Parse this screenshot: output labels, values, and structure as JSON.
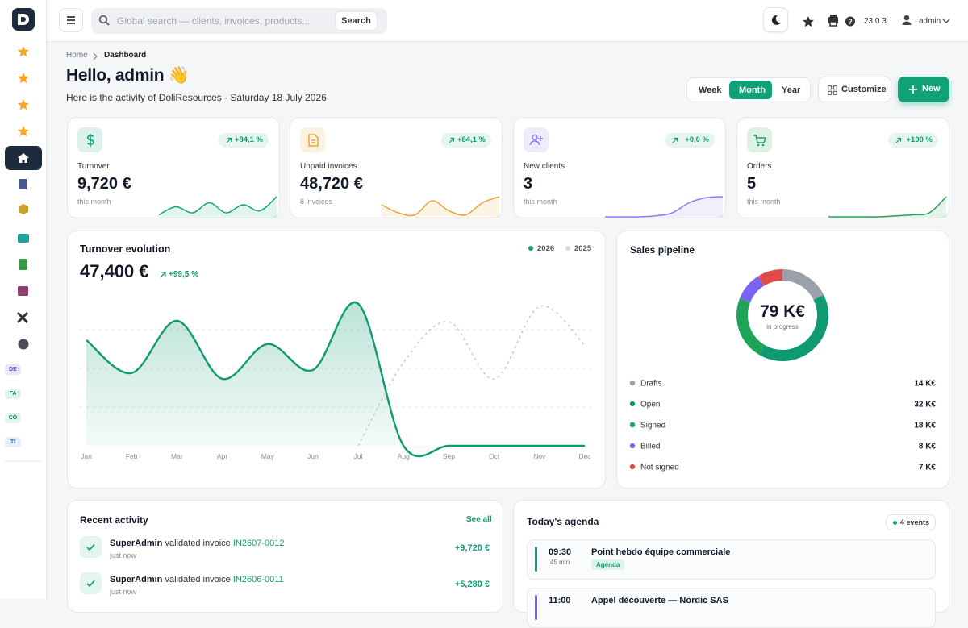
{
  "topbar": {
    "search_placeholder": "Global search — clients, invoices, products...",
    "search_button": "Search",
    "version": "23.0.3",
    "user": "admin"
  },
  "sidebar": {
    "badges": [
      "DE",
      "FA",
      "CO",
      "TI"
    ]
  },
  "breadcrumb": [
    "Home",
    "Dashboard"
  ],
  "greeting": "Hello, admin 👋",
  "subtitle": "Here is the activity of DoliResources · Saturday 18 July 2026",
  "periods": [
    "Week",
    "Month",
    "Year"
  ],
  "active_period": 1,
  "actions": {
    "customize": "Customize",
    "new": "New"
  },
  "sparkline_ylim": [
    0,
    10
  ],
  "kpis": [
    {
      "label": "Turnover",
      "value": "9,720 €",
      "note": "this month",
      "change": "+84,1 %",
      "color": "#14a37a",
      "spark": [
        1,
        5,
        2,
        7,
        2,
        6,
        3,
        10
      ]
    },
    {
      "label": "Unpaid invoices",
      "value": "48,720 €",
      "note": "8 invoices",
      "change": "+84,1 %",
      "color": "#e9a53a",
      "spark": [
        6,
        2,
        1,
        8,
        3,
        1,
        7,
        10
      ]
    },
    {
      "label": "New clients",
      "value": "3",
      "note": "this month",
      "change": "+0,0 %",
      "color": "#8b7cf6",
      "spark": [
        0,
        0,
        0,
        0.5,
        2,
        7,
        9.5,
        10
      ]
    },
    {
      "label": "Orders",
      "value": "5",
      "note": "this month",
      "change": "+100 %",
      "color": "#22a35a",
      "spark": [
        0,
        0,
        0,
        0,
        0.5,
        1,
        2,
        10
      ]
    }
  ],
  "chart_data": [
    {
      "type": "line",
      "title": "Turnover evolution",
      "total": "47,400 €",
      "change": "+99,5 %",
      "categories": [
        "Jan",
        "Feb",
        "Mar",
        "Apr",
        "May",
        "Jun",
        "Jul",
        "Aug",
        "Sep",
        "Oct",
        "Nov",
        "Dec"
      ],
      "series": [
        {
          "name": "2026",
          "color": "#0f9a72",
          "values": [
            2.73,
            1.88,
            3.23,
            1.73,
            2.63,
            1.96,
            3.67,
            0,
            0,
            0,
            0,
            0
          ]
        },
        {
          "name": "2025",
          "color": "#c9ccd1",
          "dashed": true,
          "values": [
            null,
            null,
            null,
            null,
            null,
            null,
            0,
            2.15,
            3.2,
            1.73,
            3.6,
            2.6
          ]
        }
      ],
      "ylim": [
        0,
        4
      ],
      "yticks": [
        1,
        2,
        3
      ],
      "grid": true
    },
    {
      "type": "pie",
      "title": "Sales pipeline",
      "center_value": "79 K€",
      "center_label": "in progress",
      "categories": [
        "Drafts",
        "Open",
        "Signed",
        "Billed",
        "Not signed"
      ],
      "values": [
        14,
        32,
        18,
        8,
        7
      ],
      "value_labels": [
        "14 K€",
        "32 K€",
        "18 K€",
        "8 K€",
        "7 K€"
      ],
      "colors": [
        "#9aa1ab",
        "#0f9a72",
        "#1fa356",
        "#7c63f0",
        "#e04a4a"
      ]
    }
  ],
  "activity": {
    "title": "Recent activity",
    "link": "See all",
    "items": [
      {
        "user": "SuperAdmin",
        "action": "validated invoice",
        "ref": "IN2607-0012",
        "time": "just now",
        "amount": "+9,720 €"
      },
      {
        "user": "SuperAdmin",
        "action": "validated invoice",
        "ref": "IN2606-0011",
        "time": "just now",
        "amount": "+5,280 €"
      }
    ]
  },
  "agenda": {
    "title": "Today's agenda",
    "badge": "4 events",
    "items": [
      {
        "time": "09:30",
        "duration": "45 min",
        "title": "Point hebdo équipe commerciale",
        "tag": "Agenda"
      },
      {
        "time": "11:00",
        "title": "Appel découverte — Nordic SAS"
      }
    ]
  }
}
